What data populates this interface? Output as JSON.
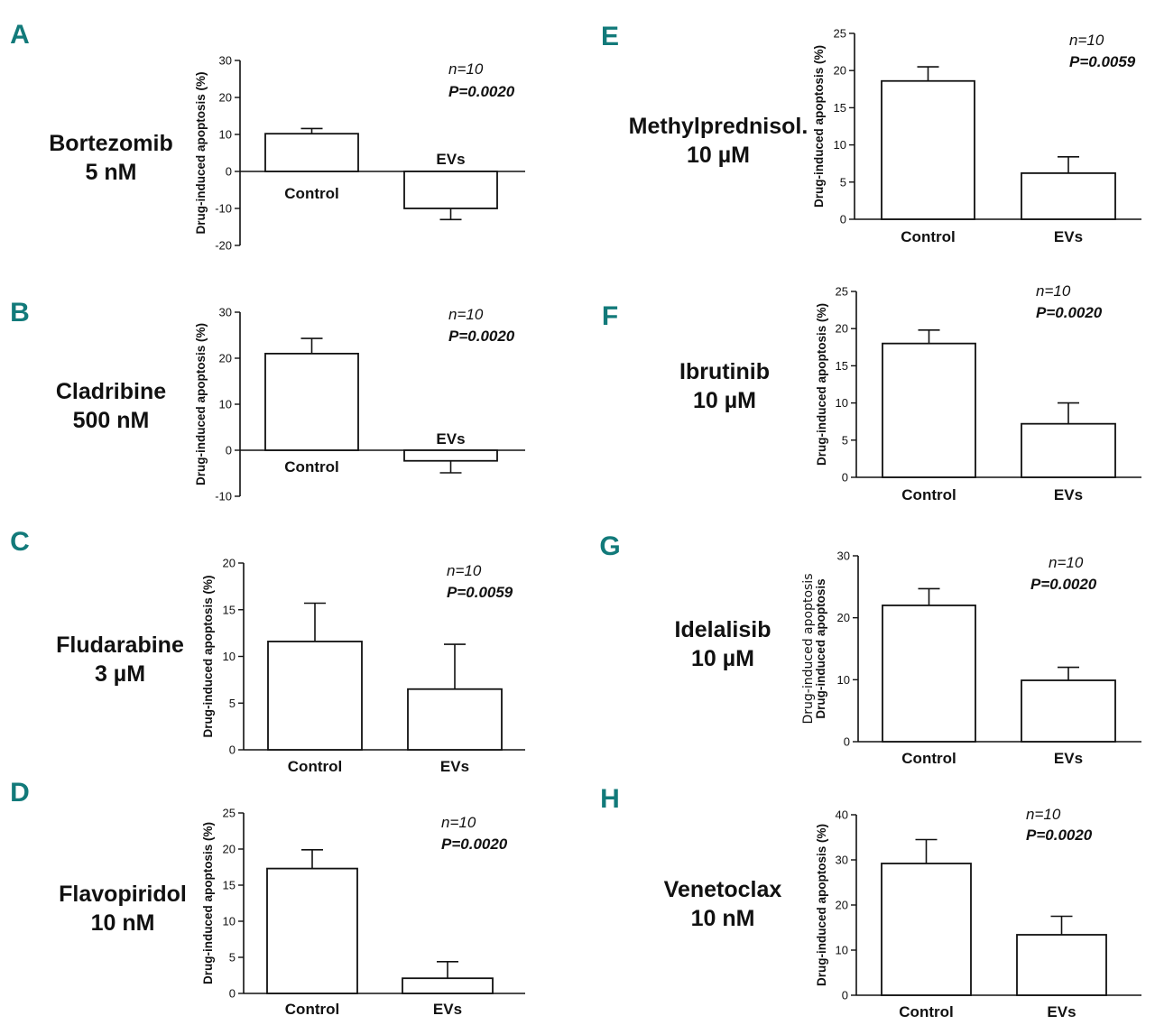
{
  "figure": {
    "letter_color": "#127a7a"
  },
  "chart_data": [
    {
      "type": "bar",
      "panel": "A",
      "drug": "Bortezomib",
      "dose": "5 nM",
      "categories": [
        "Control",
        "EVs"
      ],
      "values": [
        10.2,
        -10.0
      ],
      "errors": [
        1.4,
        3.0
      ],
      "ylabel": "Drug-induced apoptosis (%)",
      "ylim": [
        -20,
        30
      ],
      "yticks": [
        30,
        20,
        10,
        0,
        -10,
        -20
      ],
      "ytick_labels": [
        "30",
        "20",
        "10",
        "0",
        "-10",
        "-20"
      ],
      "n": "n=10",
      "p": "P=0.0020"
    },
    {
      "type": "bar",
      "panel": "B",
      "drug": "Cladribine",
      "dose": "500 nM",
      "categories": [
        "Control",
        "EVs"
      ],
      "values": [
        21.0,
        -2.3
      ],
      "errors": [
        3.3,
        2.6
      ],
      "ylabel": "Drug-induced apoptosis (%)",
      "ylim": [
        -10,
        30
      ],
      "yticks": [
        30,
        20,
        10,
        0,
        -10
      ],
      "ytick_labels": [
        "30",
        "20",
        "10",
        "0",
        "-10"
      ],
      "n": "n=10",
      "p": "P=0.0020"
    },
    {
      "type": "bar",
      "panel": "C",
      "drug": "Fludarabine",
      "dose": "3 µM",
      "categories": [
        "Control",
        "EVs"
      ],
      "values": [
        11.6,
        6.5
      ],
      "errors": [
        4.1,
        4.8
      ],
      "ylabel": "Drug-induced apoptosis (%)",
      "ylim": [
        0,
        20
      ],
      "yticks": [
        20,
        15,
        10,
        5,
        0
      ],
      "ytick_labels": [
        "20",
        "15",
        "10",
        "5",
        "0"
      ],
      "n": "n=10",
      "p": "P=0.0059"
    },
    {
      "type": "bar",
      "panel": "D",
      "drug": "Flavopiridol",
      "dose": "10 nM",
      "categories": [
        "Control",
        "EVs"
      ],
      "values": [
        17.3,
        2.1
      ],
      "errors": [
        2.6,
        2.3
      ],
      "ylabel": "Drug-induced apoptosis (%)",
      "ylim": [
        0,
        25
      ],
      "yticks": [
        25,
        20,
        15,
        10,
        5,
        0
      ],
      "ytick_labels": [
        "25",
        "20",
        "15",
        "10",
        "5",
        "0"
      ],
      "n": "n=10",
      "p": "P=0.0020"
    },
    {
      "type": "bar",
      "panel": "E",
      "drug": "Methylprednisol.",
      "dose": "10 µM",
      "categories": [
        "Control",
        "EVs"
      ],
      "values": [
        18.6,
        6.2
      ],
      "errors": [
        1.9,
        2.2
      ],
      "ylabel": "Drug-induced apoptosis (%)",
      "ylim": [
        0,
        25
      ],
      "yticks": [
        25,
        20,
        15,
        10,
        5,
        0
      ],
      "ytick_labels": [
        "25",
        "20",
        "15",
        "10",
        "5",
        "0"
      ],
      "n": "n=10",
      "p": "P=0.0059"
    },
    {
      "type": "bar",
      "panel": "F",
      "drug": "Ibrutinib",
      "dose": "10 µM",
      "categories": [
        "Control",
        "EVs"
      ],
      "values": [
        18.0,
        7.2
      ],
      "errors": [
        1.8,
        2.8
      ],
      "ylabel": "Drug-induced apoptosis (%)",
      "ylim": [
        0,
        25
      ],
      "yticks": [
        25,
        20,
        15,
        10,
        5,
        0
      ],
      "ytick_labels": [
        "25",
        "20",
        "15",
        "10",
        "5",
        "0"
      ],
      "n": "n=10",
      "p": "P=0.0020"
    },
    {
      "type": "bar",
      "panel": "G",
      "drug": "Idelalisib",
      "dose": "10 µM",
      "categories": [
        "Control",
        "EVs"
      ],
      "values": [
        22.0,
        9.9
      ],
      "errors": [
        2.7,
        2.1
      ],
      "ylabel": "Drug-induced apoptosis",
      "ylabel_overlay": "Drug-induced apoptosis",
      "ylim": [
        0,
        30
      ],
      "yticks": [
        30,
        20,
        10,
        0
      ],
      "ytick_labels": [
        "30",
        "20",
        "10",
        "0"
      ],
      "n": "n=10",
      "p": "P=0.0020"
    },
    {
      "type": "bar",
      "panel": "H",
      "drug": "Venetoclax",
      "dose": "10 nM",
      "categories": [
        "Control",
        "EVs"
      ],
      "values": [
        29.2,
        13.4
      ],
      "errors": [
        5.3,
        4.1
      ],
      "ylabel": "Drug-induced apoptosis (%)",
      "ylim": [
        0,
        40
      ],
      "yticks": [
        40,
        30,
        20,
        10,
        0
      ],
      "ytick_labels": [
        "40",
        "30",
        "20",
        "10",
        "0"
      ],
      "n": "n=10",
      "p": "P=0.0020"
    }
  ]
}
